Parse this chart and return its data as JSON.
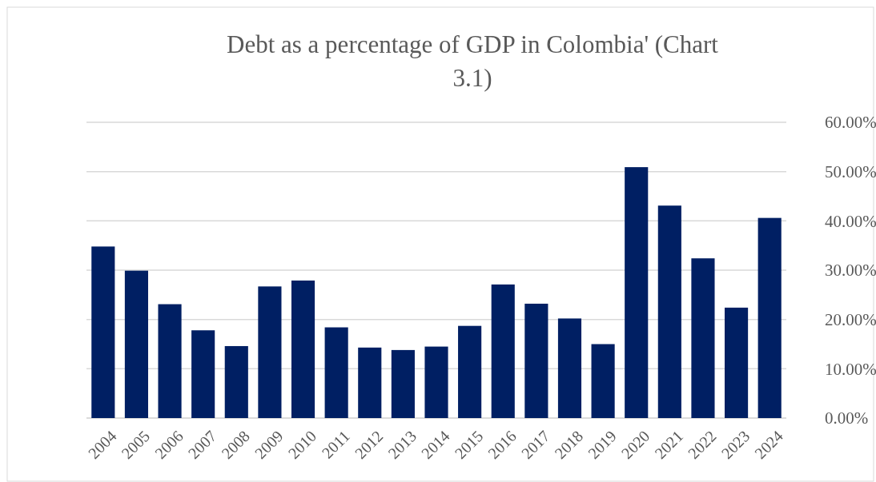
{
  "chart_data": {
    "type": "bar",
    "title": "Debt as a percentage of GDP in Colombia' (Chart 3.1)",
    "categories": [
      "2004",
      "2005",
      "2006",
      "2007",
      "2008",
      "2009",
      "2010",
      "2011",
      "2012",
      "2013",
      "2014",
      "2015",
      "2016",
      "2017",
      "2018",
      "2019",
      "2020",
      "2021",
      "2022",
      "2023",
      "2024"
    ],
    "values": [
      34.8,
      29.9,
      23.1,
      17.8,
      14.6,
      26.7,
      27.9,
      18.4,
      14.3,
      13.8,
      14.5,
      18.7,
      27.1,
      23.2,
      20.2,
      15.0,
      50.9,
      43.1,
      32.4,
      22.4,
      40.6
    ],
    "color": "#001f63",
    "ylim": [
      0,
      60
    ],
    "yticks": [
      {
        "value": 0,
        "label": "0.00%"
      },
      {
        "value": 10,
        "label": "10.00%"
      },
      {
        "value": 20,
        "label": "20.00%"
      },
      {
        "value": 30,
        "label": "30.00%"
      },
      {
        "value": 40,
        "label": "40.00%"
      },
      {
        "value": 50,
        "label": "50.00%"
      },
      {
        "value": 60,
        "label": "60.00%"
      }
    ],
    "grid": "y"
  }
}
